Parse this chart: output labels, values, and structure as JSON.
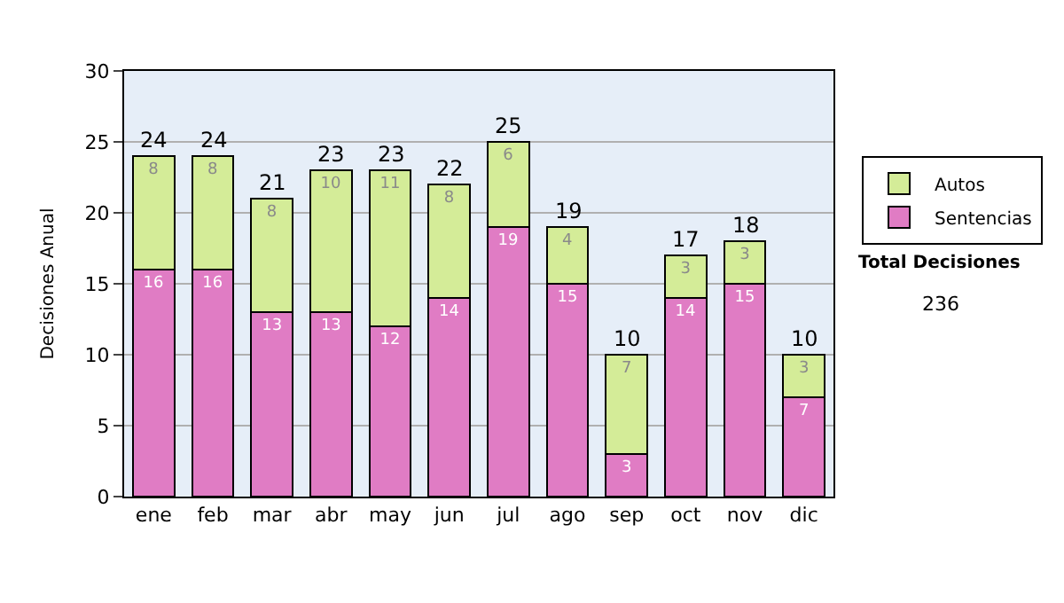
{
  "chart_data": {
    "type": "bar",
    "stacked": true,
    "ylabel": "Decisiones Anual",
    "categories": [
      "ene",
      "feb",
      "mar",
      "abr",
      "may",
      "jun",
      "jul",
      "ago",
      "sep",
      "oct",
      "nov",
      "dic"
    ],
    "series": [
      {
        "name": "Sentencias",
        "color": "#e07cc4",
        "values": [
          16,
          16,
          13,
          13,
          12,
          14,
          19,
          15,
          3,
          14,
          15,
          7
        ]
      },
      {
        "name": "Autos",
        "color": "#d4ec98",
        "values": [
          8,
          8,
          8,
          10,
          11,
          8,
          6,
          4,
          7,
          3,
          3,
          3
        ]
      }
    ],
    "totals": [
      "24",
      "24",
      "21",
      "23",
      "23",
      "22",
      "25",
      "19",
      "10",
      "17",
      "18",
      "10"
    ],
    "data_labels": true,
    "ylim": [
      0,
      30
    ],
    "yticks": [
      0,
      5,
      10,
      15,
      20,
      25,
      30
    ],
    "grid": "y",
    "legend": "right",
    "annotations": [
      "Total Decisiones",
      "236"
    ]
  }
}
